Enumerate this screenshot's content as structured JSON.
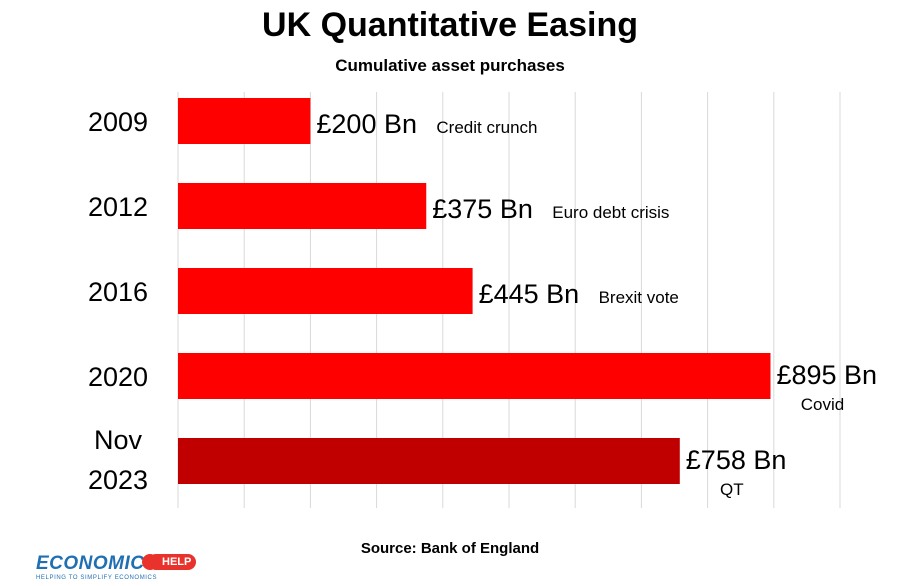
{
  "title": "UK Quantitative Easing",
  "subtitle": "Cumulative asset purchases",
  "source": "Source: Bank of England",
  "logo": {
    "name": "ECONOMICS",
    "badge": "HELP",
    "tagline": "HELPING TO SIMPLIFY ECONOMICS"
  },
  "colors": {
    "bar": "#ff0000",
    "bar_highlight": "#c00000",
    "grid": "#d9d9d9"
  },
  "chart_data": {
    "type": "bar",
    "orientation": "horizontal",
    "title": "UK Quantitative Easing",
    "subtitle": "Cumulative asset purchases",
    "xlabel": "",
    "ylabel": "",
    "xlim": [
      0,
      1000
    ],
    "grid": true,
    "legend": "none",
    "categories": [
      [
        "2009"
      ],
      [
        "2012"
      ],
      [
        "2016"
      ],
      [
        "2020"
      ],
      [
        "Nov",
        "2023"
      ]
    ],
    "values": [
      200,
      375,
      445,
      895,
      758
    ],
    "value_labels": [
      "£200 Bn",
      "£375 Bn",
      "£445 Bn",
      "£895 Bn",
      "£758 Bn"
    ],
    "annotations": [
      "Credit crunch",
      "Euro debt crisis",
      "Brexit vote",
      "Covid",
      "QT"
    ]
  }
}
